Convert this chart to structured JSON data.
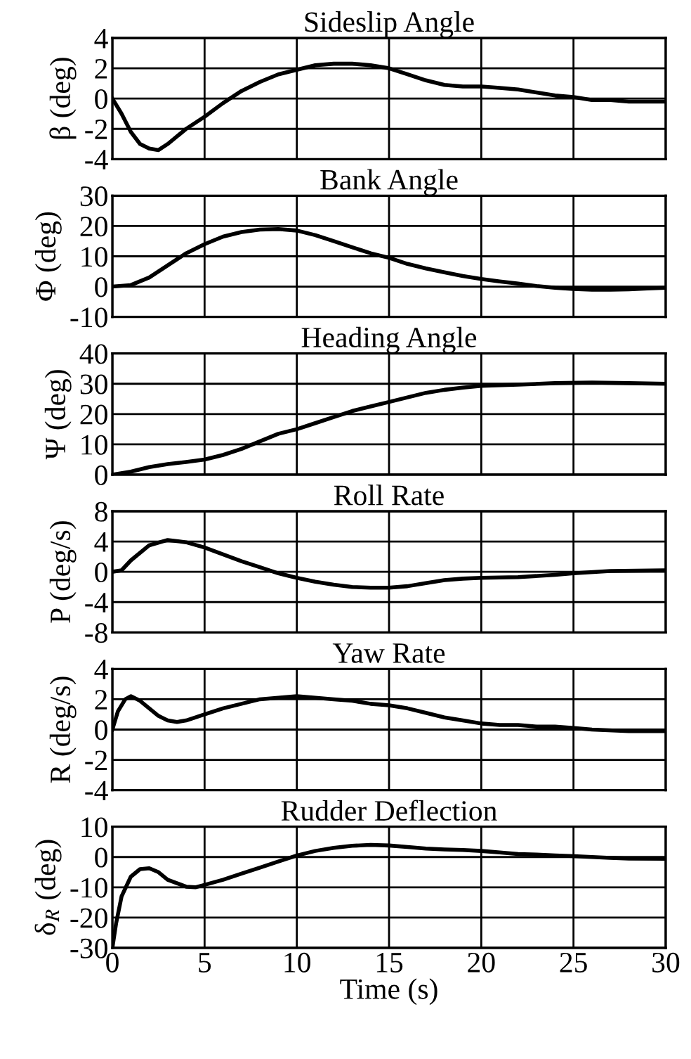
{
  "chart_data": [
    {
      "type": "line",
      "title": "Sideslip Angle",
      "ylabel": "β (deg)",
      "x": [
        0,
        0.5,
        1,
        1.5,
        2,
        2.5,
        3,
        4,
        5,
        6,
        7,
        8,
        9,
        10,
        11,
        12,
        13,
        14,
        15,
        16,
        17,
        18,
        19,
        20,
        21,
        22,
        23,
        24,
        25,
        26,
        27,
        28,
        29,
        30
      ],
      "series": [
        {
          "color": "#000000",
          "values": [
            0,
            -1,
            -2.2,
            -3.0,
            -3.3,
            -3.4,
            -3.0,
            -2.0,
            -1.2,
            -0.3,
            0.5,
            1.1,
            1.6,
            1.9,
            2.2,
            2.3,
            2.3,
            2.2,
            2.0,
            1.6,
            1.2,
            0.9,
            0.8,
            0.8,
            0.7,
            0.6,
            0.4,
            0.2,
            0.1,
            -0.1,
            -0.1,
            -0.2,
            -0.2,
            -0.2
          ]
        }
      ],
      "xlim": [
        0,
        30
      ],
      "xticks": [
        0,
        5,
        10,
        15,
        20,
        25,
        30
      ],
      "ylim": [
        -4,
        4
      ],
      "yticks": [
        -4,
        -2,
        0,
        2,
        4
      ],
      "grid": true,
      "tick_labels": "y"
    },
    {
      "type": "line",
      "title": "Bank Angle",
      "ylabel": "Φ (deg)",
      "x": [
        0,
        1,
        2,
        3,
        4,
        5,
        6,
        7,
        8,
        9,
        10,
        11,
        12,
        13,
        14,
        15,
        16,
        17,
        18,
        19,
        20,
        21,
        22,
        23,
        24,
        25,
        26,
        27,
        28,
        29,
        30
      ],
      "series": [
        {
          "color": "#000000",
          "values": [
            0,
            0.5,
            3,
            7,
            11,
            14,
            16.5,
            18,
            18.8,
            19,
            18.5,
            17,
            15,
            13,
            11,
            9.5,
            7.5,
            6,
            4.7,
            3.5,
            2.5,
            1.7,
            1,
            0.2,
            -0.4,
            -0.8,
            -1,
            -1,
            -0.9,
            -0.6,
            -0.4
          ]
        }
      ],
      "xlim": [
        0,
        30
      ],
      "xticks": [
        0,
        5,
        10,
        15,
        20,
        25,
        30
      ],
      "ylim": [
        -10,
        30
      ],
      "yticks": [
        -10,
        0,
        10,
        20,
        30
      ],
      "grid": true,
      "tick_labels": "y"
    },
    {
      "type": "line",
      "title": "Heading Angle",
      "ylabel": "Ψ (deg)",
      "x": [
        0,
        1,
        2,
        3,
        4,
        5,
        6,
        7,
        8,
        9,
        10,
        11,
        12,
        13,
        14,
        15,
        16,
        17,
        18,
        19,
        20,
        22,
        24,
        26,
        28,
        30
      ],
      "series": [
        {
          "color": "#000000",
          "values": [
            0,
            1,
            2.5,
            3.5,
            4.2,
            5,
            6.5,
            8.5,
            11,
            13.5,
            15,
            17,
            19,
            21,
            22.5,
            24,
            25.5,
            27,
            28,
            28.7,
            29.3,
            29.7,
            30.2,
            30.4,
            30.2,
            30
          ]
        }
      ],
      "xlim": [
        0,
        30
      ],
      "xticks": [
        0,
        5,
        10,
        15,
        20,
        25,
        30
      ],
      "ylim": [
        0,
        40
      ],
      "yticks": [
        0,
        10,
        20,
        30,
        40
      ],
      "grid": true,
      "tick_labels": "y"
    },
    {
      "type": "line",
      "title": "Roll Rate",
      "ylabel": "P (deg/s)",
      "x": [
        0,
        0.5,
        1,
        2,
        3,
        4,
        5,
        6,
        7,
        8,
        9,
        10,
        11,
        12,
        13,
        14,
        15,
        16,
        17,
        18,
        19,
        20,
        22,
        24,
        25,
        27,
        30
      ],
      "series": [
        {
          "color": "#000000",
          "values": [
            0,
            0.2,
            1.5,
            3.5,
            4.2,
            3.9,
            3.2,
            2.3,
            1.4,
            0.6,
            -0.2,
            -0.8,
            -1.3,
            -1.7,
            -2.0,
            -2.1,
            -2.1,
            -1.9,
            -1.5,
            -1.1,
            -0.9,
            -0.8,
            -0.7,
            -0.4,
            -0.2,
            0.1,
            0.2
          ]
        }
      ],
      "xlim": [
        0,
        30
      ],
      "xticks": [
        0,
        5,
        10,
        15,
        20,
        25,
        30
      ],
      "ylim": [
        -8,
        8
      ],
      "yticks": [
        -8,
        -4,
        0,
        4,
        8
      ],
      "grid": true,
      "tick_labels": "y"
    },
    {
      "type": "line",
      "title": "Yaw Rate",
      "ylabel": "R (deg/s)",
      "x": [
        0,
        0.3,
        0.7,
        1,
        1.5,
        2,
        2.5,
        3,
        3.5,
        4,
        5,
        6,
        7,
        8,
        9,
        10,
        11,
        12,
        13,
        14,
        15,
        16,
        17,
        18,
        19,
        20,
        21,
        22,
        23,
        24,
        25,
        26,
        28,
        30
      ],
      "series": [
        {
          "color": "#000000",
          "values": [
            0,
            1.2,
            2.0,
            2.2,
            1.9,
            1.4,
            0.9,
            0.6,
            0.5,
            0.6,
            1.0,
            1.4,
            1.7,
            2.0,
            2.1,
            2.2,
            2.1,
            2.0,
            1.9,
            1.7,
            1.6,
            1.4,
            1.1,
            0.8,
            0.6,
            0.4,
            0.3,
            0.3,
            0.2,
            0.2,
            0.1,
            0.0,
            -0.1,
            -0.1
          ]
        }
      ],
      "xlim": [
        0,
        30
      ],
      "xticks": [
        0,
        5,
        10,
        15,
        20,
        25,
        30
      ],
      "ylim": [
        -4,
        4
      ],
      "yticks": [
        -4,
        -2,
        0,
        2,
        4
      ],
      "grid": true,
      "tick_labels": "y"
    },
    {
      "type": "line",
      "title": "Rudder Deflection",
      "ylabel": "δ$_{R}$ (deg)",
      "xlabel": "Time (s)",
      "x": [
        0,
        0.2,
        0.5,
        1,
        1.5,
        2,
        2.5,
        3,
        4,
        4.5,
        5,
        6,
        7,
        8,
        9,
        10,
        11,
        12,
        13,
        14,
        15,
        16,
        17,
        18,
        19,
        20,
        21,
        22,
        23,
        24,
        25,
        26,
        27,
        28,
        30
      ],
      "series": [
        {
          "color": "#000000",
          "values": [
            -30,
            -22,
            -13,
            -6.5,
            -4,
            -3.7,
            -5,
            -7.5,
            -9.8,
            -10,
            -9.2,
            -7.5,
            -5.5,
            -3.5,
            -1.5,
            0.5,
            2,
            3,
            3.7,
            4,
            3.8,
            3.3,
            2.8,
            2.5,
            2.3,
            2,
            1.5,
            1,
            0.8,
            0.5,
            0.3,
            0,
            -0.3,
            -0.5,
            -0.6
          ]
        }
      ],
      "xlim": [
        0,
        30
      ],
      "xticks": [
        0,
        5,
        10,
        15,
        20,
        25,
        30
      ],
      "ylim": [
        -30,
        10
      ],
      "yticks": [
        -30,
        -20,
        -10,
        0,
        10
      ],
      "grid": true
    }
  ]
}
